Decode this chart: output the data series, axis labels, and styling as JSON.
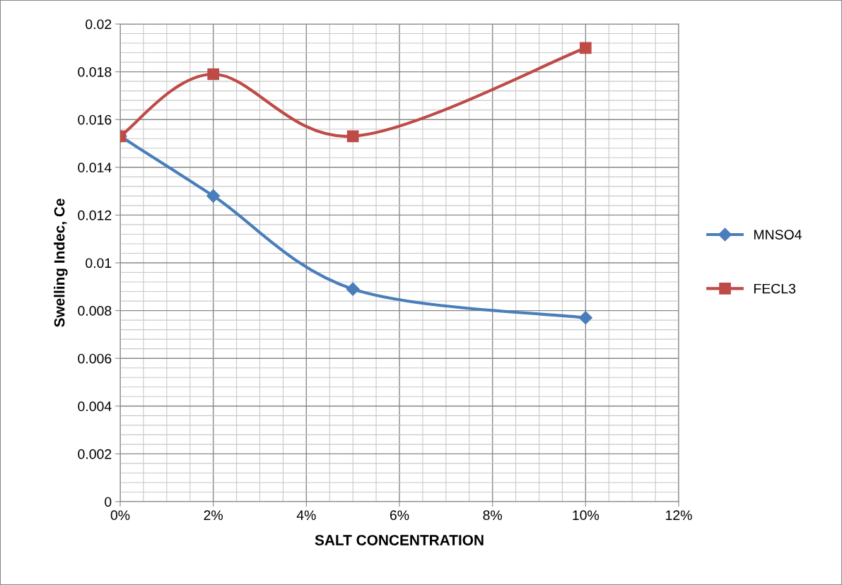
{
  "chart_data": {
    "type": "line",
    "xlabel": "SALT CONCENTRATION",
    "ylabel": "Swelling Indec, Ce",
    "xlim": [
      0,
      12
    ],
    "xticks": [
      {
        "value": 0,
        "label": "0%"
      },
      {
        "value": 2,
        "label": "2%"
      },
      {
        "value": 4,
        "label": "4%"
      },
      {
        "value": 6,
        "label": "6%"
      },
      {
        "value": 8,
        "label": "8%"
      },
      {
        "value": 10,
        "label": "10%"
      },
      {
        "value": 12,
        "label": "12%"
      }
    ],
    "ylim": [
      0,
      0.02
    ],
    "yticks": [
      0,
      0.002,
      0.004,
      0.006,
      0.008,
      0.01,
      0.012,
      0.014,
      0.016,
      0.018,
      0.02
    ],
    "x": [
      0,
      2,
      5,
      10
    ],
    "series": [
      {
        "name": "MNSO4",
        "color": "#4a7ebb",
        "marker": "diamond",
        "values": [
          0.0153,
          0.0128,
          0.0089,
          0.0077
        ]
      },
      {
        "name": "FECL3",
        "color": "#be4b48",
        "marker": "square",
        "values": [
          0.0153,
          0.0179,
          0.0153,
          0.019
        ]
      }
    ],
    "grid": true,
    "legend": "right",
    "line_style": "solid"
  }
}
